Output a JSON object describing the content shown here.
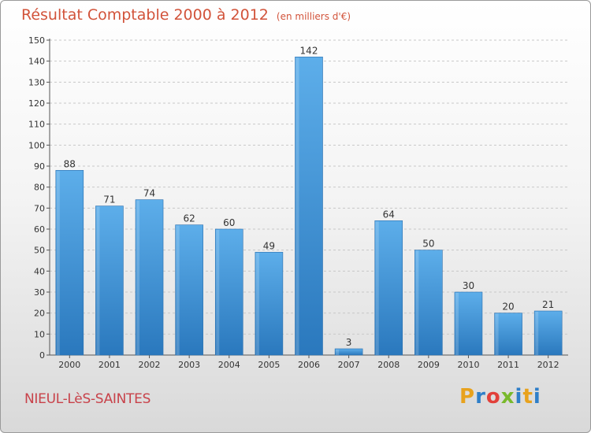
{
  "header": {
    "title": "Résultat Comptable 2000 à 2012",
    "subtitle": "(en milliers d'€)"
  },
  "footer": {
    "town": "NIEUL-LèS-SAINTES",
    "logo_letters": [
      "P",
      "r",
      "o",
      "x",
      "i",
      "t",
      "i"
    ],
    "logo_colors": [
      "#e8a21d",
      "#2f7fc8",
      "#e2403a",
      "#79b92c",
      "#2f7fc8",
      "#e8a21d",
      "#2f7fc8"
    ]
  },
  "chart_data": {
    "type": "bar",
    "title": "Résultat Comptable 2000 à 2012",
    "subtitle": "(en milliers d'€)",
    "categories": [
      "2000",
      "2001",
      "2002",
      "2003",
      "2004",
      "2005",
      "2006",
      "2007",
      "2008",
      "2009",
      "2010",
      "2011",
      "2012"
    ],
    "values": [
      88,
      71,
      74,
      62,
      60,
      49,
      142,
      3,
      64,
      50,
      30,
      20,
      21
    ],
    "data_labels": [
      "88",
      "71",
      "74",
      "62",
      "60",
      "49",
      "142",
      "3",
      "64",
      "50",
      "30",
      "20",
      "21"
    ],
    "ylim": [
      0,
      150
    ],
    "yticks": [
      0,
      10,
      20,
      30,
      40,
      50,
      60,
      70,
      80,
      90,
      100,
      110,
      120,
      130,
      140,
      150
    ],
    "grid": true,
    "bar_color": "#4f9fdc"
  }
}
